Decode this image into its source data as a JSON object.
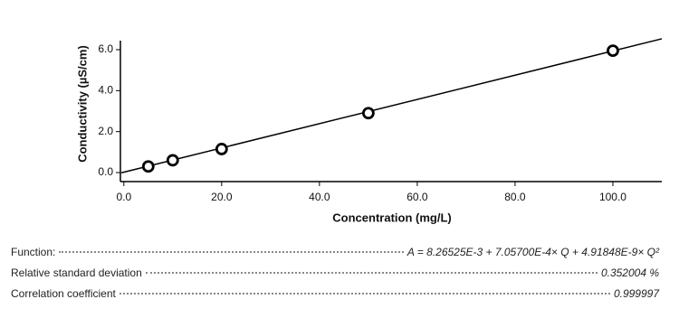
{
  "chart_data": {
    "type": "scatter",
    "y_label": "Conductivity (µS/cm)",
    "x_label": "Concentration (mg/L)",
    "xlim": [
      -0.7,
      110
    ],
    "ylim": [
      -0.44,
      6.44
    ],
    "xticks": [
      {
        "value": 0,
        "label": "0.0"
      },
      {
        "value": 20,
        "label": "20.0"
      },
      {
        "value": 40,
        "label": "40.0"
      },
      {
        "value": 60,
        "label": "60.0"
      },
      {
        "value": 80,
        "label": "80.0"
      },
      {
        "value": 100,
        "label": "100.0"
      }
    ],
    "yticks": [
      {
        "value": 0,
        "label": "0.0"
      },
      {
        "value": 2,
        "label": "2.0"
      },
      {
        "value": 4,
        "label": "4.0"
      },
      {
        "value": 6,
        "label": "6.0"
      }
    ],
    "series": [
      {
        "x": [
          5,
          10,
          20,
          50,
          100
        ],
        "values": [
          0.3,
          0.6,
          1.15,
          2.9,
          5.95
        ],
        "color": "#000000",
        "marker": "circle"
      },
      {
        "x": [
          -0.5,
          110
        ],
        "values": [
          -0.01,
          6.53
        ],
        "color": "#000000",
        "marker": "line"
      }
    ]
  },
  "results": [
    {
      "label": "Function:",
      "value": "A = 8.26525E-3 + 7.05700E-4× Q + 4.91848E-9× Q²"
    },
    {
      "label": "Relative standard deviation",
      "value": "0.352004 %"
    },
    {
      "label": "Correlation coefficient",
      "value": "0.999997"
    }
  ]
}
